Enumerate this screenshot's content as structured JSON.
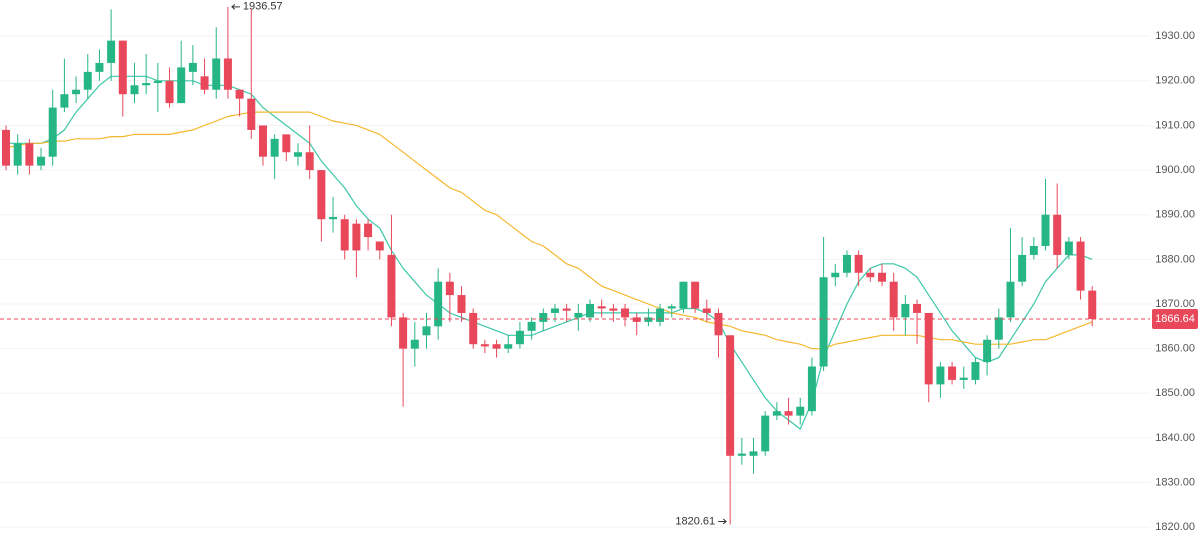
{
  "chart_data": {
    "type": "candlestick",
    "up_color": "#26b685",
    "down_color": "#e8485a",
    "ylim": [
      1814.9,
      1938.1
    ],
    "yticks": [
      {
        "value": 1820,
        "label": "1820.00"
      },
      {
        "value": 1830,
        "label": "1830.00"
      },
      {
        "value": 1840,
        "label": "1840.00"
      },
      {
        "value": 1850,
        "label": "1850.00"
      },
      {
        "value": 1860,
        "label": "1860.00"
      },
      {
        "value": 1870,
        "label": "1870.00"
      },
      {
        "value": 1880,
        "label": "1880.00"
      },
      {
        "value": 1890,
        "label": "1890.00"
      },
      {
        "value": 1900,
        "label": "1900.00"
      },
      {
        "value": 1910,
        "label": "1910.00"
      },
      {
        "value": 1920,
        "label": "1920.00"
      },
      {
        "value": 1930,
        "label": "1930.00"
      }
    ],
    "grid": true,
    "open": [
      1909,
      1901,
      1906,
      1901,
      1903,
      1914,
      1917,
      1918,
      1922,
      1924,
      1929,
      1917,
      1919,
      1919.5,
      1920,
      1915,
      1922,
      1921,
      1918,
      1925,
      1918,
      1916,
      1910,
      1903,
      1908,
      1903,
      1904,
      1900,
      1889,
      1889,
      1888,
      1888,
      1884,
      1881,
      1867,
      1860,
      1863,
      1865,
      1875,
      1872,
      1868,
      1861,
      1861,
      1860,
      1861,
      1864,
      1866,
      1868,
      1869,
      1867,
      1867,
      1869.5,
      1869,
      1869,
      1867,
      1866,
      1866,
      1869,
      1869,
      1875,
      1869,
      1868,
      1863,
      1836,
      1836,
      1837,
      1845,
      1846,
      1845,
      1846,
      1856,
      1876,
      1877,
      1881,
      1877,
      1877,
      1875,
      1867,
      1870,
      1868,
      1852,
      1856,
      1853,
      1853,
      1857,
      1862,
      1867,
      1875,
      1881,
      1883,
      1890,
      1881,
      1884,
      1873
    ],
    "close": [
      1901,
      1906,
      1901,
      1903,
      1914,
      1917,
      1918,
      1922,
      1924,
      1929,
      1917,
      1919,
      1919.5,
      1920,
      1915,
      1923,
      1924,
      1918,
      1925,
      1918,
      1916,
      1909,
      1903,
      1907,
      1904,
      1904,
      1900,
      1889,
      1889.5,
      1882,
      1882,
      1885,
      1882,
      1867,
      1860,
      1862,
      1865,
      1875,
      1872,
      1868,
      1861,
      1860.5,
      1860,
      1861,
      1864,
      1866,
      1868,
      1869,
      1868.5,
      1868,
      1870,
      1869,
      1868.5,
      1867,
      1866,
      1867,
      1869,
      1869.5,
      1875,
      1869,
      1868,
      1863,
      1836,
      1836.5,
      1837,
      1845,
      1846,
      1845,
      1847,
      1856,
      1876,
      1877,
      1881,
      1877,
      1876,
      1875,
      1867,
      1870,
      1868,
      1852,
      1856,
      1853,
      1853.5,
      1857,
      1862,
      1867,
      1875,
      1881,
      1883,
      1890,
      1881,
      1884,
      1873,
      1866.64
    ],
    "high": [
      1910,
      1908,
      1907,
      1905,
      1918,
      1925,
      1921,
      1926,
      1927,
      1936,
      1929,
      1924,
      1926,
      1924,
      1923,
      1929,
      1928,
      1925,
      1932,
      1936.57,
      1918,
      1936,
      1910,
      1908,
      1908,
      1906,
      1910,
      1900,
      1894,
      1890,
      1889,
      1889,
      1884,
      1890,
      1868,
      1866,
      1868,
      1878,
      1877,
      1874,
      1869,
      1862,
      1862,
      1863,
      1866,
      1867,
      1869,
      1870,
      1870,
      1870,
      1871,
      1871,
      1870,
      1870,
      1868,
      1869,
      1870,
      1870,
      1875,
      1875,
      1871,
      1869,
      1863,
      1840,
      1840,
      1846,
      1848,
      1849,
      1849,
      1858,
      1885,
      1879,
      1882,
      1882,
      1878,
      1879,
      1877,
      1872,
      1871,
      1868,
      1857,
      1857,
      1856,
      1858,
      1863,
      1869,
      1887,
      1885,
      1885,
      1898,
      1897,
      1885,
      1885,
      1874
    ],
    "low": [
      1900,
      1899,
      1899,
      1900,
      1901,
      1913,
      1915,
      1916,
      1920,
      1920,
      1912,
      1915,
      1917,
      1913,
      1914,
      1915,
      1919,
      1917,
      1916,
      1916,
      1912,
      1907,
      1901,
      1898,
      1902,
      1901,
      1898,
      1884,
      1886,
      1880,
      1876,
      1882,
      1880,
      1865,
      1847,
      1856,
      1860,
      1862,
      1866,
      1866,
      1860,
      1859,
      1858,
      1859,
      1860,
      1862,
      1864,
      1866,
      1866,
      1864,
      1866,
      1867,
      1866,
      1865,
      1863,
      1865,
      1865,
      1867,
      1868,
      1868,
      1866,
      1858,
      1820.61,
      1834,
      1832,
      1836,
      1844,
      1843,
      1843,
      1845,
      1855,
      1874,
      1876,
      1874,
      1875,
      1874,
      1864,
      1863,
      1861,
      1848,
      1849,
      1852,
      1851,
      1852,
      1854,
      1860,
      1866,
      1874,
      1880,
      1882,
      1878,
      1880,
      1871,
      1865
    ],
    "moving_averages": [
      {
        "color": "#3cc7a8",
        "values": [
          1906,
          1906,
          1906,
          1906,
          1907,
          1909,
          1913,
          1916,
          1919,
          1921,
          1921,
          1921,
          1921,
          1920,
          1920,
          1920,
          1920,
          1919,
          1919,
          1919,
          1918,
          1917,
          1914,
          1912,
          1910,
          1908,
          1906,
          1902,
          1899,
          1896,
          1892,
          1889,
          1887,
          1882,
          1878,
          1875,
          1872,
          1870,
          1868,
          1867,
          1866,
          1865,
          1864,
          1863,
          1863,
          1863,
          1864,
          1865,
          1866,
          1867,
          1868,
          1868,
          1868,
          1868,
          1868,
          1868,
          1868,
          1868,
          1869,
          1869,
          1868,
          1866,
          1861,
          1857,
          1853,
          1849,
          1846,
          1844,
          1842,
          1848,
          1858,
          1864,
          1870,
          1875,
          1878,
          1879,
          1879,
          1878,
          1876,
          1872,
          1868,
          1864,
          1861,
          1858,
          1857,
          1858,
          1862,
          1866,
          1870,
          1875,
          1878,
          1881,
          1881,
          1880
        ]
      },
      {
        "color": "#f5b82e",
        "values": [
          1905,
          1905.5,
          1906,
          1906,
          1906.5,
          1906.5,
          1907,
          1907,
          1907,
          1907.5,
          1907.5,
          1908,
          1908,
          1908,
          1908,
          1908.5,
          1909,
          1910,
          1911,
          1912,
          1912.5,
          1913,
          1913,
          1913,
          1913,
          1913,
          1913,
          1912,
          1911,
          1910.5,
          1910,
          1909,
          1908,
          1906,
          1904,
          1902,
          1900,
          1898,
          1896,
          1895,
          1893,
          1891,
          1890,
          1888,
          1886,
          1884,
          1883,
          1881,
          1879,
          1878,
          1876,
          1874,
          1873,
          1872,
          1871,
          1870,
          1869,
          1868,
          1867.5,
          1867,
          1866,
          1865.5,
          1865,
          1864,
          1863.5,
          1863,
          1862,
          1861.5,
          1861,
          1860,
          1860,
          1861,
          1861.5,
          1862,
          1862.5,
          1863,
          1863,
          1863,
          1863,
          1862.5,
          1862,
          1862,
          1861.5,
          1861,
          1861,
          1861,
          1861,
          1861.5,
          1862,
          1862,
          1863,
          1864,
          1865,
          1866
        ]
      }
    ],
    "high_marker": 1936.57,
    "low_marker": 1820.61,
    "last_price": 1866.64,
    "last_price_color": "#e8485a"
  }
}
